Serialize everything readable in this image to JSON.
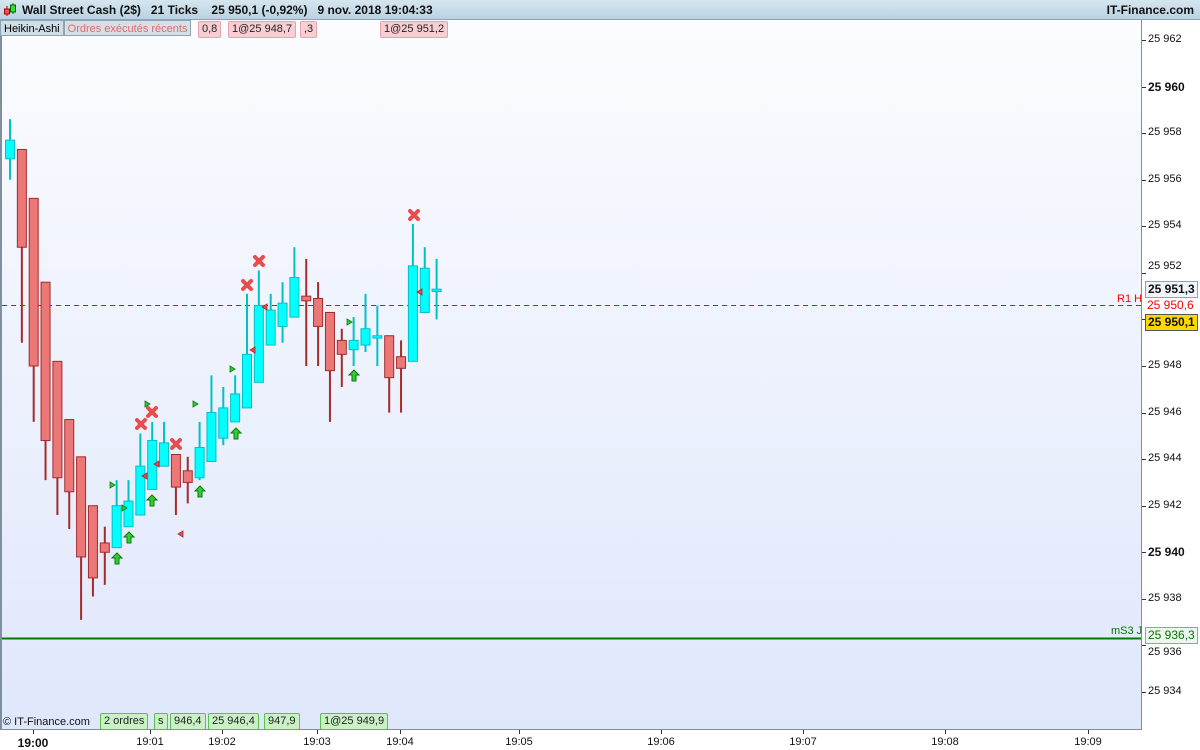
{
  "header": {
    "title": "Wall Street Cash (2$)   21 Ticks    25 950,1 (-0,92%)   9 nov. 2018 19:04:33",
    "brand": "IT-Finance.com"
  },
  "indicators": {
    "style": "Heikin-Ashi",
    "orders": "Ordres exécutés récents"
  },
  "copyright": "© IT-Finance.com",
  "sell_tags": [
    "0,8",
    "1@25 948,7",
    ",3",
    "1@25 951,2"
  ],
  "buy_tags": [
    "2 ordres",
    "s",
    "946,4",
    "25 946,4",
    "947,9",
    "1@25 949,9"
  ],
  "price_labels": {
    "last_high": "25 951,3",
    "r1": "25 950,6",
    "r1_name": "R1 H",
    "current": "25 950,1",
    "ms3": "25 936,3",
    "ms3_name": "mS3 J"
  },
  "colors": {
    "up": "#00ffff",
    "up_border": "#00c0c8",
    "down": "#ec7777",
    "down_border": "#a52a2a",
    "r1": "#ff0000",
    "ms3": "#007a00",
    "current_bg": "#ffd700"
  },
  "chart_data": {
    "type": "candlestick",
    "style": "Heikin-Ashi",
    "interval": "21 Ticks",
    "ylim": [
      25933,
      25963
    ],
    "y_ticks": [
      "25 962",
      "25 960",
      "25 958",
      "25 956",
      "25 954",
      "25 952",
      "25 950",
      "25 948",
      "25 946",
      "25 944",
      "25 942",
      "25 940",
      "25 938",
      "25 936",
      "25 934"
    ],
    "y_tick_values": [
      25962,
      25960,
      25958,
      25956,
      25954,
      25952,
      25950,
      25948,
      25946,
      25944,
      25942,
      25940,
      25938,
      25936,
      25934
    ],
    "x_ticks": [
      "19:00",
      "19:01",
      "19:02",
      "19:03",
      "19:04",
      "19:05",
      "19:06",
      "19:07",
      "19:08",
      "19:09"
    ],
    "levels": [
      {
        "name": "R1 H",
        "value": 25950.6,
        "style": "dashed"
      },
      {
        "name": "mS3 J",
        "value": 25936.3,
        "style": "solid"
      }
    ],
    "candles": [
      [
        25956.9,
        25958.6,
        25956.0,
        25957.7
      ],
      [
        25957.3,
        25957.3,
        25949.0,
        25953.1
      ],
      [
        25955.2,
        25955.2,
        25945.6,
        25948.0
      ],
      [
        25951.6,
        25951.6,
        25943.1,
        25944.8
      ],
      [
        25948.2,
        25948.2,
        25941.6,
        25943.2
      ],
      [
        25945.7,
        25945.7,
        25941.0,
        25942.6
      ],
      [
        25944.1,
        25944.1,
        25937.1,
        25939.8
      ],
      [
        25942.0,
        25942.0,
        25938.1,
        25938.9
      ],
      [
        25940.4,
        25941.1,
        25938.6,
        25940.0
      ],
      [
        25940.2,
        25943.1,
        25940.2,
        25942.0
      ],
      [
        25941.1,
        25943.1,
        25941.1,
        25942.2
      ],
      [
        25941.6,
        25945.1,
        25941.6,
        25943.7
      ],
      [
        25942.7,
        25945.6,
        25942.7,
        25944.8
      ],
      [
        25943.7,
        25945.6,
        25943.7,
        25944.7
      ],
      [
        25944.2,
        25944.2,
        25941.6,
        25942.8
      ],
      [
        25943.5,
        25944.1,
        25942.1,
        25943.0
      ],
      [
        25943.2,
        25945.6,
        25943.1,
        25944.5
      ],
      [
        25943.9,
        25947.6,
        25943.9,
        25946.0
      ],
      [
        25944.9,
        25947.1,
        25944.6,
        25946.2
      ],
      [
        25945.6,
        25947.6,
        25945.6,
        25946.8
      ],
      [
        25946.2,
        25951.1,
        25946.2,
        25948.5
      ],
      [
        25947.3,
        25952.1,
        25947.3,
        25950.6
      ],
      [
        25948.9,
        25951.1,
        25948.9,
        25950.4
      ],
      [
        25949.7,
        25951.6,
        25949.0,
        25950.7
      ],
      [
        25950.1,
        25953.1,
        25950.1,
        25951.8
      ],
      [
        25951.0,
        25952.6,
        25948.0,
        25950.8
      ],
      [
        25950.9,
        25951.6,
        25948.0,
        25949.7
      ],
      [
        25950.3,
        25950.3,
        25945.6,
        25947.8
      ],
      [
        25949.1,
        25949.6,
        25947.1,
        25948.5
      ],
      [
        25948.7,
        25950.1,
        25948.0,
        25949.1
      ],
      [
        25948.9,
        25951.1,
        25948.6,
        25949.6
      ],
      [
        25949.2,
        25950.6,
        25948.0,
        25949.3
      ],
      [
        25949.3,
        25949.3,
        25946.0,
        25947.5
      ],
      [
        25948.4,
        25949.1,
        25946.0,
        25947.9
      ],
      [
        25948.2,
        25954.1,
        25948.2,
        25952.3
      ],
      [
        25950.3,
        25953.1,
        25950.3,
        25952.2
      ],
      [
        25951.2,
        25952.6,
        25950.0,
        25951.3
      ]
    ]
  }
}
